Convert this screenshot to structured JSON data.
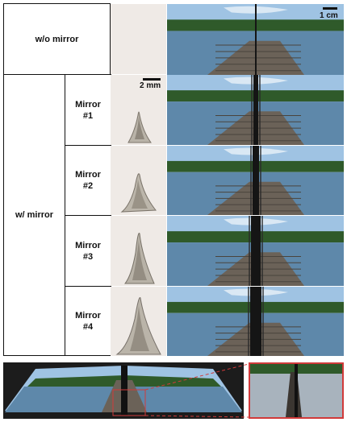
{
  "table": {
    "header_label": "w/o mirror",
    "group_label": "w/ mirror",
    "mirrors": [
      {
        "label_line1": "Mirror",
        "label_line2": "#1"
      },
      {
        "label_line1": "Mirror",
        "label_line2": "#2"
      },
      {
        "label_line1": "Mirror",
        "label_line2": "#3"
      },
      {
        "label_line1": "Mirror",
        "label_line2": "#4"
      }
    ]
  },
  "scale_bars": {
    "photo": "1 cm",
    "sample": "2 mm"
  },
  "colors": {
    "sky": "#9fc3e3",
    "trees": "#2f5a2a",
    "water": "#5e88aa",
    "dock": "#6b6258",
    "inset_border": "#d13a3a"
  }
}
